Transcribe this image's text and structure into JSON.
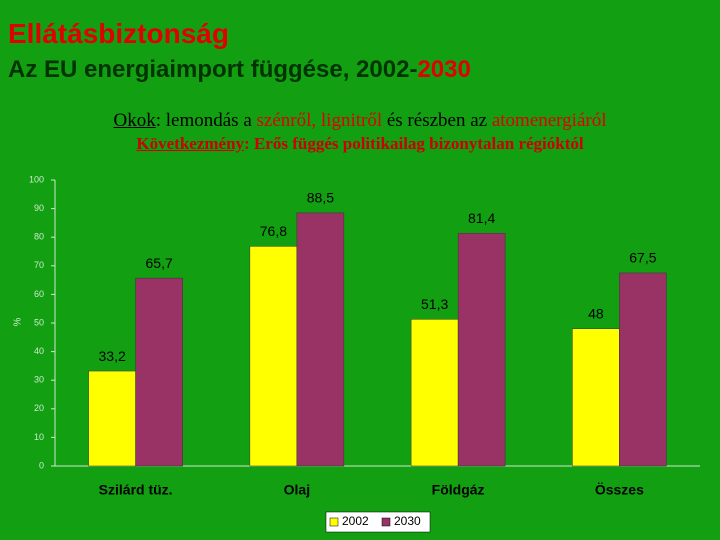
{
  "header": {
    "title": "Ellátásbiztonság",
    "subtitle": [
      "Az EU energiaimport függése, 2002-",
      "2030"
    ]
  },
  "bullets": [
    [
      "Okok",
      ": lemondás a ",
      "szénről, lignitről",
      " és részben az ",
      "atomenergiáról"
    ],
    [
      "Következmény",
      ": Erős függés politikailag bizonytalan régióktól"
    ]
  ],
  "chart_data": {
    "type": "bar",
    "y_label": "%",
    "categories": [
      "Szilárd tüz.",
      "Olaj",
      "Földgáz",
      "Összes"
    ],
    "series": [
      {
        "name": "2002",
        "color": "#ffff00",
        "values": [
          33.2,
          76.8,
          51.3,
          48
        ],
        "value_labels": [
          "33,2",
          "76,8",
          "51,3",
          "48"
        ]
      },
      {
        "name": "2030",
        "color": "#993366",
        "values": [
          65.7,
          88.5,
          81.4,
          67.5
        ],
        "value_labels": [
          "65,7",
          "88,5",
          "81,4",
          "67,5"
        ]
      }
    ],
    "ylim": [
      0,
      100
    ],
    "yticks": [
      0,
      10,
      20,
      30,
      40,
      50,
      60,
      70,
      80,
      90,
      100
    ],
    "grid": false,
    "legend": "bottom"
  }
}
